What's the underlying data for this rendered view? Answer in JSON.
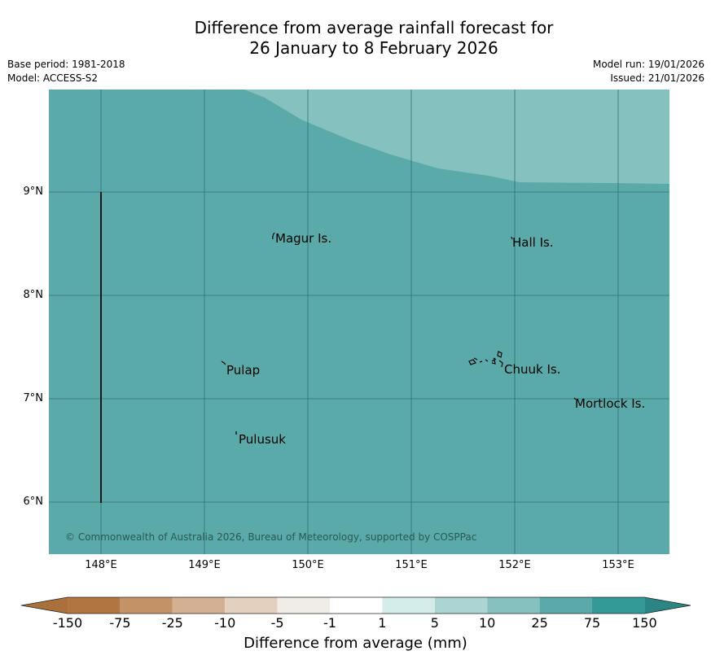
{
  "title": {
    "line1": "Difference from average rainfall forecast for",
    "line2": "26 January to 8 February 2026"
  },
  "meta": {
    "base_period": "Base period: 1981-2018",
    "model": "Model: ACCESS-S2",
    "model_run": "Model run: 19/01/2026",
    "issued": "Issued: 21/01/2026"
  },
  "map": {
    "lat_labels": [
      "9°N",
      "8°N",
      "7°N",
      "6°N"
    ],
    "lon_labels": [
      "148°E",
      "149°E",
      "150°E",
      "151°E",
      "152°E",
      "153°E"
    ],
    "places": [
      "Magur Is.",
      "Hall Is.",
      "Pulap",
      "Chuuk Is.",
      "Mortlock Is.",
      "Pulusuk"
    ],
    "copyright": "© Commonwealth of Australia 2026, Bureau of Meteorology, supported by COSPPac",
    "colors": {
      "main_fill": "#5aaaaa",
      "secondary_fill": "#84c1bf",
      "gridline": "#2f7272"
    }
  },
  "colorbar": {
    "tick_labels": [
      "-150",
      "-75",
      "-25",
      "-10",
      "-5",
      "-1",
      "1",
      "5",
      "10",
      "25",
      "75",
      "150"
    ],
    "colors": [
      "#a8703a",
      "#b07540",
      "#c39265",
      "#d3b091",
      "#e3d0bf",
      "#f0ede7",
      "#ffffff",
      "#d4ecea",
      "#abd5d3",
      "#84c1bf",
      "#5aaaaa",
      "#349a98",
      "#2a8584"
    ],
    "label": "Difference from average (mm)"
  }
}
